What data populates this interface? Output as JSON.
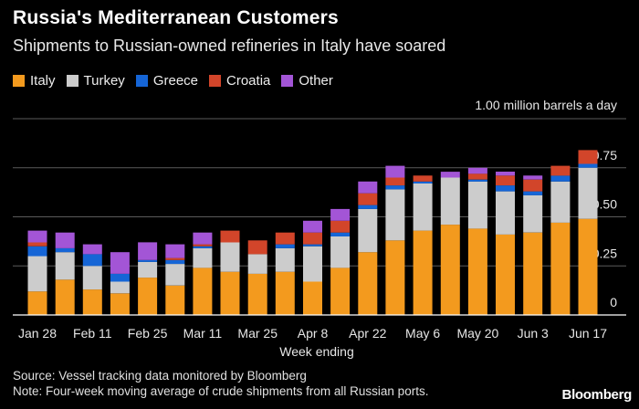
{
  "header": {
    "title": "Russia's Mediterranean Customers",
    "subtitle": "Shipments to Russian-owned refineries in Italy have soared"
  },
  "legend": [
    {
      "label": "Italy",
      "color": "#F39A1E"
    },
    {
      "label": "Turkey",
      "color": "#CCCCCC"
    },
    {
      "label": "Greece",
      "color": "#1565D6"
    },
    {
      "label": "Croatia",
      "color": "#D2452A"
    },
    {
      "label": "Other",
      "color": "#A355D6"
    }
  ],
  "chart_data": {
    "type": "bar",
    "stacked": true,
    "title": "Russia's Mediterranean Customers",
    "subtitle": "Shipments to Russian-owned refineries in Italy have soared",
    "unit_label": "1.00 million barrels a day",
    "xlabel": "Week ending",
    "ylabel": "",
    "ylim": [
      0,
      1.0
    ],
    "yticks": [
      0,
      0.25,
      0.5,
      0.75
    ],
    "ytick_labels": [
      "0",
      "0.25",
      "0.50",
      "0.75"
    ],
    "tick_labels": [
      "Jan 28",
      "Feb 11",
      "Feb 25",
      "Mar 11",
      "Mar 25",
      "Apr 8",
      "Apr 22",
      "May 6",
      "May 20",
      "Jun 3",
      "Jun 17"
    ],
    "categories": [
      "Jan 28",
      "Feb 4",
      "Feb 11",
      "Feb 18",
      "Feb 25",
      "Mar 4",
      "Mar 11",
      "Mar 18",
      "Mar 25",
      "Apr 1",
      "Apr 8",
      "Apr 15",
      "Apr 22",
      "Apr 29",
      "May 6",
      "May 13",
      "May 20",
      "May 27",
      "Jun 3",
      "Jun 10",
      "Jun 17"
    ],
    "series": [
      {
        "name": "Italy",
        "color": "#F39A1E",
        "values": [
          0.12,
          0.18,
          0.13,
          0.11,
          0.19,
          0.15,
          0.24,
          0.22,
          0.21,
          0.22,
          0.17,
          0.24,
          0.32,
          0.38,
          0.43,
          0.46,
          0.44,
          0.41,
          0.42,
          0.47,
          0.49
        ]
      },
      {
        "name": "Turkey",
        "color": "#CCCCCC",
        "values": [
          0.18,
          0.14,
          0.12,
          0.06,
          0.08,
          0.11,
          0.1,
          0.15,
          0.1,
          0.12,
          0.18,
          0.16,
          0.22,
          0.26,
          0.24,
          0.24,
          0.24,
          0.22,
          0.19,
          0.21,
          0.26
        ]
      },
      {
        "name": "Greece",
        "color": "#1565D6",
        "values": [
          0.05,
          0.02,
          0.06,
          0.04,
          0.01,
          0.02,
          0.01,
          0.0,
          0.0,
          0.02,
          0.01,
          0.02,
          0.02,
          0.02,
          0.01,
          0.0,
          0.01,
          0.03,
          0.02,
          0.03,
          0.02
        ]
      },
      {
        "name": "Croatia",
        "color": "#D2452A",
        "values": [
          0.02,
          0.0,
          0.0,
          0.0,
          0.0,
          0.01,
          0.01,
          0.06,
          0.07,
          0.06,
          0.06,
          0.06,
          0.06,
          0.04,
          0.03,
          0.0,
          0.03,
          0.05,
          0.06,
          0.05,
          0.07
        ]
      },
      {
        "name": "Other",
        "color": "#A355D6",
        "values": [
          0.06,
          0.08,
          0.05,
          0.11,
          0.09,
          0.07,
          0.06,
          0.0,
          0.0,
          0.0,
          0.06,
          0.06,
          0.06,
          0.06,
          0.0,
          0.03,
          0.03,
          0.02,
          0.02,
          0.0,
          0.0
        ]
      }
    ]
  },
  "footer": {
    "source": "Source: Vessel tracking data monitored by Bloomberg",
    "note": "Note: Four-week moving average of crude shipments from all Russian ports.",
    "brand": "Bloomberg"
  }
}
